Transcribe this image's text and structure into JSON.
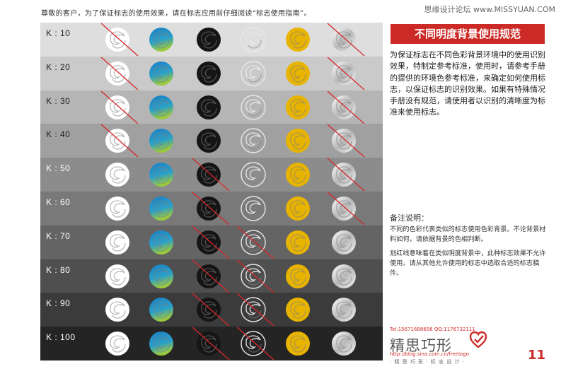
{
  "intro_text": "尊敬的客户，为了保证标志的使用效果，请在标志应用前仔细阅读“标志使用指南”。",
  "watermark": "思缘设计论坛 www.MISSYUAN.COM",
  "title": "不同明度背景使用规范",
  "description": "为保证标志在不同色彩背景环境中的使用识别效果，特制定参考标准，使用时，请参考手册的提供的环境色参考标准，来确定如何使用标志，以保证标志的识别效果。如果有特殊情况手册没有规范，请使用者以识别的清晰度为标准来使用标志。",
  "notes_title": "备注说明：",
  "notes": [
    "不同的色彩代表类似的标志使用色彩背景。不论背景材料如何，请依据背景的色相判断。",
    "划红线意味着在类似明度背景中，此种标志效果不允许使用。请从其他允许使用的标志中选取合适的标志稿件。"
  ],
  "brand": {
    "contact": "Tel:15671688656  QQ:1176732111",
    "name": "精思巧形",
    "url": "http://blog.sina.com.cn/freelogo",
    "tagline": "· 精 思 巧 形 · 标 志 设 计 ·"
  },
  "page_number": "11",
  "colors": {
    "accent_red": "#cc2a26",
    "logo_white": "#ffffff",
    "logo_black": "#151515",
    "logo_gold": "#e8b400",
    "logo_blue": "#1a7fc4",
    "logo_green": "#9ccb3b"
  },
  "logo_variants": [
    "white",
    "full-color",
    "black",
    "outline",
    "gold",
    "silver"
  ],
  "rows": [
    {
      "label": "K : 10",
      "k": 10,
      "bg": "#dedede",
      "fg": "#222222",
      "forbidden": [
        true,
        false,
        false,
        false,
        false,
        true
      ]
    },
    {
      "label": "K : 20",
      "k": 20,
      "bg": "#cacaca",
      "fg": "#222222",
      "forbidden": [
        true,
        false,
        false,
        false,
        false,
        true
      ]
    },
    {
      "label": "K : 30",
      "k": 30,
      "bg": "#b5b5b5",
      "fg": "#222222",
      "forbidden": [
        true,
        false,
        false,
        false,
        false,
        true
      ]
    },
    {
      "label": "K : 40",
      "k": 40,
      "bg": "#a0a0a0",
      "fg": "#222222",
      "forbidden": [
        true,
        false,
        false,
        false,
        false,
        true
      ]
    },
    {
      "label": "K : 50",
      "k": 50,
      "bg": "#8c8c8c",
      "fg": "#ffffff",
      "forbidden": [
        false,
        false,
        true,
        false,
        false,
        true
      ]
    },
    {
      "label": "K : 60",
      "k": 60,
      "bg": "#797979",
      "fg": "#ffffff",
      "forbidden": [
        false,
        false,
        true,
        false,
        false,
        true
      ]
    },
    {
      "label": "K : 70",
      "k": 70,
      "bg": "#646464",
      "fg": "#ffffff",
      "forbidden": [
        false,
        false,
        true,
        true,
        false,
        false
      ]
    },
    {
      "label": "K : 80",
      "k": 80,
      "bg": "#4f4f4f",
      "fg": "#ffffff",
      "forbidden": [
        false,
        false,
        true,
        true,
        false,
        false
      ]
    },
    {
      "label": "K : 90",
      "k": 90,
      "bg": "#3b3b3b",
      "fg": "#ffffff",
      "forbidden": [
        false,
        false,
        true,
        true,
        false,
        false
      ]
    },
    {
      "label": "K : 100",
      "k": 100,
      "bg": "#242424",
      "fg": "#ffffff",
      "forbidden": [
        false,
        false,
        true,
        true,
        false,
        false
      ]
    }
  ]
}
